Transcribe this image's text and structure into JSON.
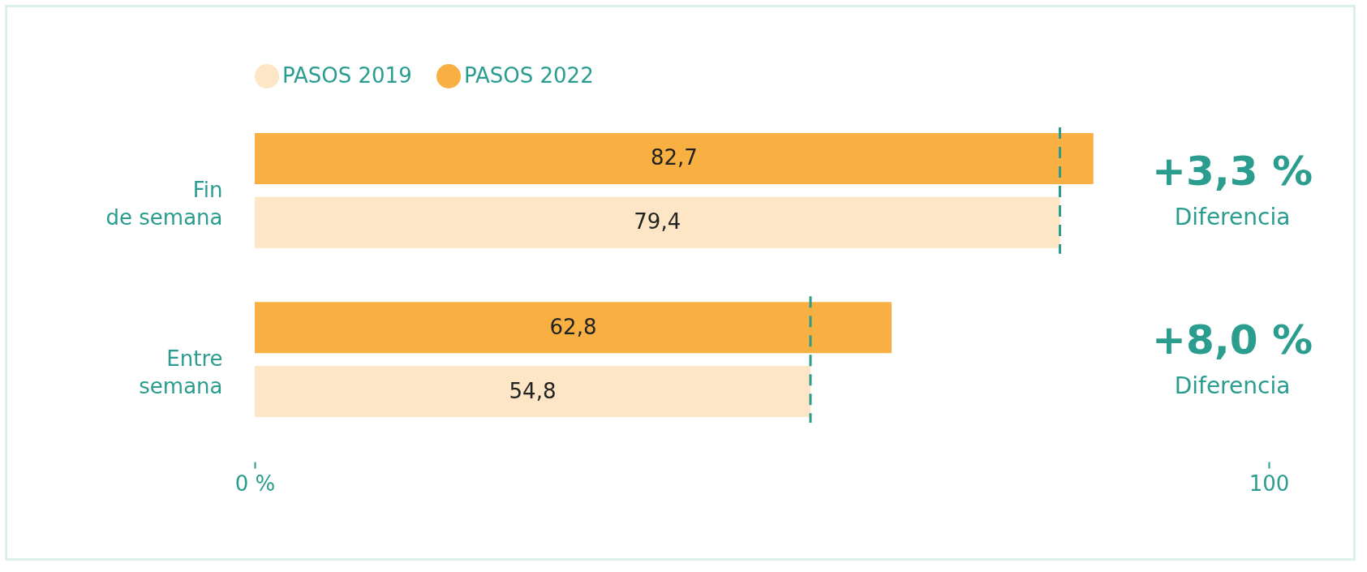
{
  "chart_data": {
    "type": "bar",
    "orientation": "horizontal",
    "categories": [
      "Fin de semana",
      "Entre semana"
    ],
    "series": [
      {
        "name": "PASOS 2019",
        "color": "#fde6c6",
        "values": [
          79.4,
          54.8
        ],
        "value_labels": [
          "79,4",
          "54,8"
        ]
      },
      {
        "name": "PASOS 2022",
        "color": "#f8b043",
        "values": [
          82.7,
          62.8
        ],
        "value_labels": [
          "82,7",
          "62,8"
        ]
      }
    ],
    "xlim": [
      0,
      100
    ],
    "xticks": [
      {
        "value": 0,
        "label": "0 %"
      },
      100
    ],
    "ref_lines": [
      {
        "axis": "x",
        "value": 79.4,
        "color": "#2a9d8f",
        "line_style": "dashed"
      },
      {
        "axis": "x",
        "value": 54.8,
        "color": "#2a9d8f",
        "line_style": "dashed"
      }
    ],
    "annotations": [
      "+3,3 %",
      "Diferencia",
      "+8,0 %",
      "Diferencia"
    ],
    "legend": "top",
    "grid": false
  }
}
